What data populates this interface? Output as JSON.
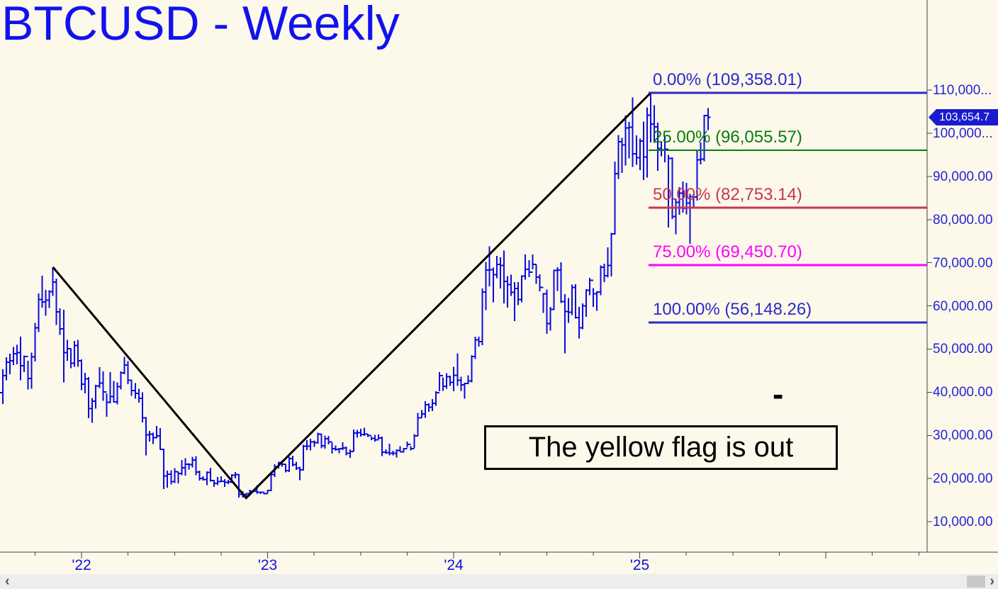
{
  "window": {
    "title": "BTCUSD - Weekly"
  },
  "colors": {
    "background": "#fcf8ea",
    "bars": "#0a0ae0",
    "title_blue": "#1212ef",
    "axis_text_blue": "#2424d8",
    "trendline": "#000000",
    "axis_line": "#444444",
    "badge_bg": "#1a1ace",
    "badge_text": "#ffffff"
  },
  "fibonacci": {
    "levels": [
      {
        "percent": "0.00%",
        "price": 109358.01,
        "label": "0.00% (109,358.01)",
        "color": "#2a2acc",
        "line_width": 3
      },
      {
        "percent": "25.00%",
        "price": 96055.57,
        "label": "25.00% (96,055.57)",
        "color": "#0a7d0a",
        "line_width": 2
      },
      {
        "percent": "50.00%",
        "price": 82753.14,
        "label": "50.00% (82,753.14)",
        "color": "#c8374d",
        "line_width": 3
      },
      {
        "percent": "75.00%",
        "price": 69450.7,
        "label": "75.00% (69,450.70)",
        "color": "#ff00ff",
        "line_width": 3
      },
      {
        "percent": "100.00%",
        "price": 56148.26,
        "label": "100.00% (56,148.26)",
        "color": "#2a2acc",
        "line_width": 3
      }
    ]
  },
  "price_axis": {
    "labels": [
      "110,000...",
      "100,000...",
      "90,000.00",
      "80,000.00",
      "70,000.00",
      "60,000.00",
      "50,000.00",
      "40,000.00",
      "30,000.00",
      "20,000.00",
      "10,000.00"
    ],
    "values_k": [
      110,
      100,
      90,
      80,
      70,
      60,
      50,
      40,
      30,
      20,
      10
    ]
  },
  "time_axis": {
    "year_labels": [
      "'22",
      "'23",
      "'24",
      "'25"
    ]
  },
  "last_price_badge": {
    "text": "103,654.7",
    "value": 103654.7
  },
  "annotations": {
    "note_box": {
      "text": "The yellow flag is out"
    },
    "dash": {
      "text": "-"
    }
  },
  "scrollbar": {
    "left_arrow": "‹",
    "right_arrow": "›"
  },
  "chart_data": {
    "type": "bar",
    "subtype": "weekly-ohlc-bars",
    "symbol": "BTCUSD",
    "timeframe": "Weekly",
    "title": "BTCUSD - Weekly",
    "x_range": [
      "2021-07-19",
      "2025-05-12"
    ],
    "y_axis_range_usd": [
      2500,
      113000
    ],
    "grid": false,
    "legend": "none",
    "units": "thousands of USD per triple [high, low, close]",
    "first_week_start": "2021-07-19",
    "first_open_k": 31.8,
    "weekly_hlc_k": [
      [
        34.0,
        29.3,
        34.3
      ],
      [
        42.6,
        33.9,
        39.9
      ],
      [
        45.3,
        37.3,
        43.8
      ],
      [
        48.1,
        42.8,
        47.0
      ],
      [
        48.9,
        44.2,
        47.3
      ],
      [
        50.5,
        46.3,
        48.9
      ],
      [
        51.0,
        46.5,
        49.2
      ],
      [
        52.9,
        42.8,
        46.1
      ],
      [
        48.5,
        44.7,
        48.3
      ],
      [
        47.3,
        40.6,
        43.2
      ],
      [
        49.2,
        40.8,
        48.2
      ],
      [
        56.1,
        47.1,
        54.9
      ],
      [
        62.9,
        53.9,
        61.5
      ],
      [
        67.0,
        59.6,
        60.9
      ],
      [
        63.7,
        57.7,
        61.3
      ],
      [
        63.6,
        59.5,
        63.3
      ],
      [
        69.0,
        62.3,
        65.5
      ],
      [
        66.3,
        55.6,
        58.6
      ],
      [
        59.4,
        53.3,
        54.7
      ],
      [
        59.1,
        42.3,
        49.2
      ],
      [
        52.1,
        47.3,
        50.1
      ],
      [
        50.2,
        45.6,
        46.7
      ],
      [
        51.9,
        45.9,
        50.8
      ],
      [
        52.1,
        45.9,
        47.3
      ],
      [
        47.6,
        40.5,
        41.9
      ],
      [
        44.5,
        39.7,
        43.1
      ],
      [
        43.5,
        34.0,
        36.2
      ],
      [
        38.7,
        32.9,
        37.9
      ],
      [
        41.7,
        36.2,
        41.5
      ],
      [
        45.8,
        41.0,
        42.1
      ],
      [
        44.8,
        38.0,
        40.1
      ],
      [
        39.7,
        34.3,
        37.7
      ],
      [
        44.7,
        37.4,
        39.0
      ],
      [
        42.6,
        37.6,
        37.8
      ],
      [
        42.3,
        37.2,
        41.3
      ],
      [
        44.8,
        40.6,
        44.5
      ],
      [
        48.2,
        44.2,
        46.3
      ],
      [
        47.2,
        41.9,
        42.8
      ],
      [
        42.9,
        39.2,
        40.4
      ],
      [
        42.1,
        38.5,
        39.7
      ],
      [
        40.8,
        37.6,
        38.6
      ],
      [
        40.0,
        33.0,
        34.1
      ],
      [
        34.2,
        25.4,
        30.1
      ],
      [
        31.0,
        28.6,
        30.3
      ],
      [
        30.6,
        28.0,
        29.5
      ],
      [
        32.2,
        29.3,
        29.9
      ],
      [
        31.7,
        26.7,
        26.8
      ],
      [
        26.9,
        17.6,
        20.6
      ],
      [
        21.8,
        17.9,
        21.0
      ],
      [
        21.9,
        18.6,
        19.3
      ],
      [
        22.4,
        19.0,
        21.6
      ],
      [
        21.6,
        18.9,
        21.2
      ],
      [
        24.3,
        20.8,
        22.5
      ],
      [
        24.7,
        20.7,
        23.3
      ],
      [
        23.6,
        22.1,
        23.2
      ],
      [
        25.0,
        22.6,
        24.3
      ],
      [
        25.2,
        20.8,
        21.5
      ],
      [
        21.8,
        19.5,
        20.0
      ],
      [
        20.5,
        19.5,
        19.8
      ],
      [
        21.7,
        18.5,
        21.4
      ],
      [
        22.5,
        19.3,
        19.5
      ],
      [
        19.7,
        18.1,
        18.9
      ],
      [
        20.4,
        18.5,
        19.3
      ],
      [
        20.5,
        19.2,
        19.4
      ],
      [
        19.9,
        18.1,
        19.1
      ],
      [
        19.7,
        18.7,
        19.2
      ],
      [
        21.0,
        19.0,
        20.8
      ],
      [
        21.5,
        20.0,
        20.9
      ],
      [
        21.0,
        15.6,
        16.3
      ],
      [
        17.1,
        15.6,
        16.3
      ],
      [
        16.7,
        15.5,
        16.5
      ],
      [
        17.4,
        16.0,
        17.1
      ],
      [
        17.4,
        16.8,
        17.1
      ],
      [
        18.4,
        16.5,
        16.8
      ],
      [
        17.0,
        16.4,
        16.8
      ],
      [
        16.8,
        16.3,
        16.5
      ],
      [
        17.4,
        16.5,
        17.2
      ],
      [
        21.3,
        17.1,
        20.9
      ],
      [
        23.3,
        20.4,
        22.7
      ],
      [
        23.8,
        22.3,
        23.7
      ],
      [
        24.2,
        22.7,
        23.3
      ],
      [
        23.4,
        21.4,
        21.8
      ],
      [
        25.0,
        21.5,
        24.6
      ],
      [
        25.3,
        22.8,
        23.2
      ],
      [
        23.9,
        22.0,
        22.4
      ],
      [
        22.7,
        19.6,
        22.0
      ],
      [
        27.8,
        21.9,
        27.5
      ],
      [
        28.9,
        26.6,
        27.5
      ],
      [
        29.2,
        26.5,
        28.5
      ],
      [
        28.8,
        27.3,
        28.3
      ],
      [
        30.6,
        28.1,
        30.3
      ],
      [
        30.4,
        27.0,
        27.6
      ],
      [
        30.0,
        26.9,
        29.2
      ],
      [
        29.9,
        27.9,
        28.5
      ],
      [
        28.3,
        25.8,
        26.9
      ],
      [
        27.7,
        26.4,
        26.8
      ],
      [
        27.1,
        25.9,
        26.9
      ],
      [
        28.4,
        26.6,
        27.1
      ],
      [
        27.4,
        25.4,
        25.9
      ],
      [
        26.8,
        24.8,
        26.3
      ],
      [
        31.4,
        26.3,
        30.5
      ],
      [
        31.3,
        29.5,
        30.6
      ],
      [
        31.5,
        29.7,
        30.2
      ],
      [
        31.8,
        29.9,
        30.3
      ],
      [
        30.4,
        29.6,
        30.0
      ],
      [
        29.7,
        28.9,
        29.3
      ],
      [
        30.1,
        28.6,
        29.0
      ],
      [
        30.2,
        29.1,
        29.4
      ],
      [
        29.7,
        25.2,
        26.1
      ],
      [
        26.8,
        25.7,
        26.0
      ],
      [
        28.1,
        25.4,
        25.9
      ],
      [
        26.4,
        25.4,
        25.9
      ],
      [
        26.8,
        24.9,
        26.5
      ],
      [
        27.5,
        26.2,
        26.2
      ],
      [
        27.1,
        26.0,
        26.9
      ],
      [
        28.6,
        27.2,
        27.9
      ],
      [
        27.5,
        26.5,
        26.9
      ],
      [
        30.3,
        27.1,
        29.9
      ],
      [
        35.2,
        29.8,
        34.1
      ],
      [
        35.9,
        34.1,
        35.0
      ],
      [
        37.9,
        34.1,
        37.1
      ],
      [
        37.4,
        35.5,
        36.5
      ],
      [
        38.4,
        35.6,
        37.4
      ],
      [
        40.2,
        36.9,
        39.9
      ],
      [
        44.7,
        40.2,
        43.8
      ],
      [
        43.4,
        40.3,
        41.4
      ],
      [
        44.4,
        40.8,
        43.6
      ],
      [
        43.8,
        41.5,
        42.3
      ],
      [
        45.9,
        40.2,
        43.9
      ],
      [
        49.0,
        41.5,
        42.8
      ],
      [
        43.6,
        40.3,
        41.7
      ],
      [
        42.2,
        38.5,
        42.0
      ],
      [
        43.9,
        41.9,
        42.6
      ],
      [
        48.6,
        42.3,
        48.3
      ],
      [
        52.9,
        47.7,
        52.1
      ],
      [
        52.9,
        50.6,
        51.7
      ],
      [
        64.0,
        50.9,
        63.2
      ],
      [
        70.2,
        59.0,
        68.3
      ],
      [
        73.8,
        64.5,
        68.4
      ],
      [
        68.9,
        60.8,
        67.2
      ],
      [
        71.6,
        66.4,
        69.6
      ],
      [
        71.3,
        64.0,
        69.4
      ],
      [
        72.8,
        60.6,
        65.7
      ],
      [
        66.9,
        59.6,
        64.9
      ],
      [
        67.2,
        62.3,
        63.1
      ],
      [
        65.5,
        56.5,
        64.0
      ],
      [
        65.5,
        60.2,
        61.5
      ],
      [
        67.1,
        60.8,
        66.9
      ],
      [
        71.9,
        66.1,
        68.5
      ],
      [
        70.6,
        66.7,
        67.8
      ],
      [
        71.9,
        68.5,
        69.6
      ],
      [
        69.6,
        65.1,
        66.7
      ],
      [
        67.3,
        63.4,
        64.3
      ],
      [
        63.0,
        58.4,
        62.8
      ],
      [
        63.8,
        53.5,
        55.9
      ],
      [
        59.8,
        54.3,
        59.2
      ],
      [
        68.4,
        59.0,
        68.2
      ],
      [
        69.0,
        63.5,
        68.3
      ],
      [
        70.1,
        60.7,
        61.0
      ],
      [
        62.7,
        49.0,
        58.7
      ],
      [
        61.8,
        56.1,
        58.5
      ],
      [
        64.9,
        57.9,
        64.3
      ],
      [
        65.0,
        57.1,
        57.3
      ],
      [
        59.8,
        52.5,
        54.9
      ],
      [
        60.6,
        54.6,
        60.0
      ],
      [
        63.9,
        57.5,
        63.6
      ],
      [
        66.5,
        62.5,
        65.9
      ],
      [
        64.1,
        59.8,
        62.8
      ],
      [
        63.4,
        58.9,
        63.2
      ],
      [
        69.4,
        62.5,
        69.0
      ],
      [
        69.8,
        65.5,
        67.0
      ],
      [
        73.6,
        66.6,
        69.4
      ],
      [
        76.9,
        66.8,
        76.7
      ],
      [
        93.4,
        76.5,
        90.6
      ],
      [
        99.6,
        89.4,
        98.0
      ],
      [
        98.9,
        90.8,
        97.3
      ],
      [
        104.1,
        92.5,
        101.2
      ],
      [
        102.6,
        94.2,
        101.4
      ],
      [
        108.3,
        92.2,
        95.2
      ],
      [
        99.5,
        92.7,
        94.3
      ],
      [
        98.8,
        91.5,
        98.2
      ],
      [
        102.7,
        89.2,
        94.5
      ],
      [
        106.0,
        89.7,
        104.2
      ],
      [
        109.4,
        97.9,
        102.1
      ],
      [
        106.5,
        97.8,
        101.5
      ],
      [
        102.5,
        91.3,
        96.5
      ],
      [
        98.1,
        94.7,
        96.1
      ],
      [
        99.5,
        93.3,
        96.3
      ],
      [
        95.0,
        78.2,
        94.2
      ],
      [
        94.4,
        80.1,
        80.7
      ],
      [
        84.8,
        76.6,
        84.0
      ],
      [
        87.5,
        81.1,
        86.1
      ],
      [
        88.8,
        81.6,
        82.6
      ],
      [
        88.5,
        81.2,
        83.8
      ],
      [
        86.0,
        74.4,
        85.3
      ],
      [
        86.0,
        83.0,
        85.2
      ],
      [
        95.9,
        84.4,
        93.8
      ],
      [
        97.9,
        92.8,
        94.0
      ],
      [
        104.3,
        93.5,
        104.1
      ],
      [
        105.8,
        100.7,
        103.7
      ]
    ],
    "trendline_anchors": [
      {
        "week": 16,
        "price_k": 69.0
      },
      {
        "week": 70,
        "price_k": 15.5
      },
      {
        "week": 183,
        "price_k": 109.358
      }
    ]
  }
}
